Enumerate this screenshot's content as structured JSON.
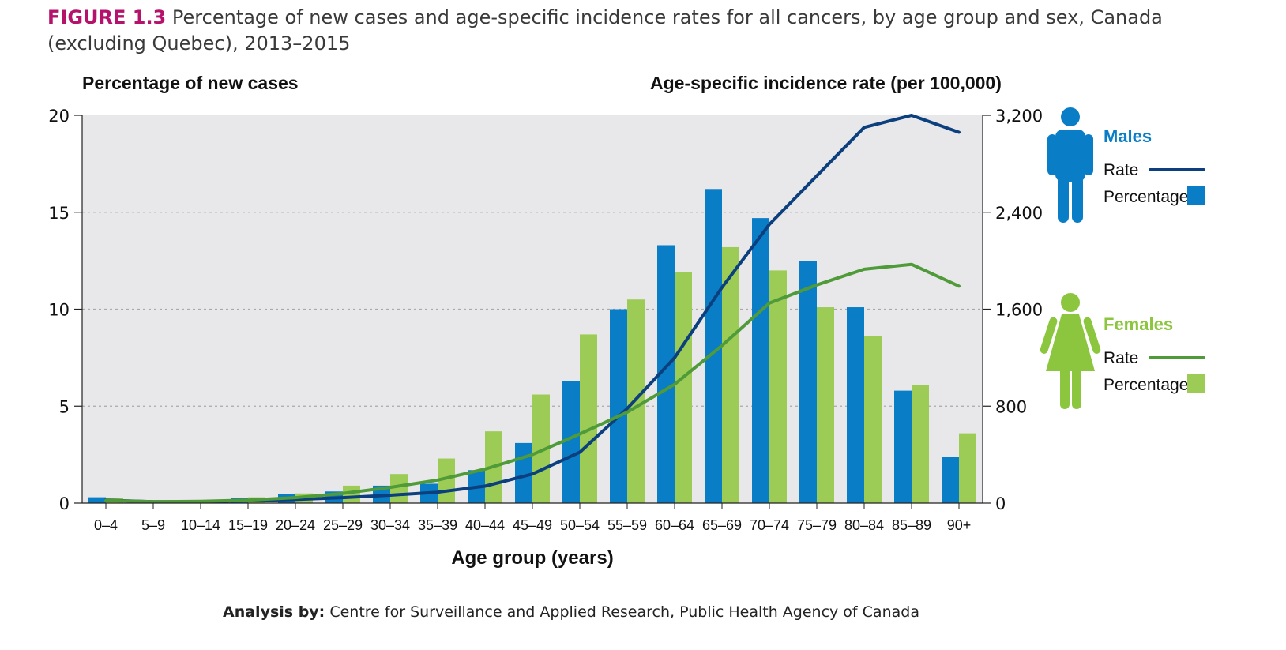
{
  "figure": {
    "number": "FIGURE 1.3",
    "title": "Percentage of new cases and age-specific incidence rates for all cancers, by age group and sex, Canada (excluding Quebec), 2013–2015"
  },
  "source": {
    "label": "Analysis by:",
    "text": "Centre for Surveillance and Applied Research, Public Health Agency of Canada"
  },
  "chart_data": {
    "type": "bar",
    "title": "",
    "xlabel": "Age group (years)",
    "ylabel": "Percentage of new cases",
    "y2label": "Age-specific incidence rate (per 100,000)",
    "ylim": [
      0,
      20
    ],
    "y2lim": [
      0,
      3200
    ],
    "yticks": [
      "0",
      "5",
      "10",
      "15",
      "20"
    ],
    "y2ticks": [
      "0",
      "800",
      "1,600",
      "2,400",
      "3,200"
    ],
    "grid": true,
    "legend_placement": "right",
    "categories": [
      "0–4",
      "5–9",
      "10–14",
      "15–19",
      "20–24",
      "25–29",
      "30–34",
      "35–39",
      "40–44",
      "45–49",
      "50–54",
      "55–59",
      "60–64",
      "65–69",
      "70–74",
      "75–79",
      "80–84",
      "85–89",
      "90+"
    ],
    "series": [
      {
        "name": "Percentage",
        "group": "Males",
        "kind": "bar",
        "axis": "left",
        "color": "#0a7dc7",
        "values": [
          0.3,
          0.1,
          0.15,
          0.25,
          0.45,
          0.6,
          0.9,
          1.0,
          1.7,
          3.1,
          6.3,
          10.0,
          13.3,
          16.2,
          14.7,
          12.5,
          10.1,
          5.8,
          2.4
        ]
      },
      {
        "name": "Percentage",
        "group": "Females",
        "kind": "bar",
        "axis": "left",
        "color": "#9ccc55",
        "values": [
          0.25,
          0.1,
          0.15,
          0.3,
          0.5,
          0.9,
          1.5,
          2.3,
          3.7,
          5.6,
          8.7,
          10.5,
          11.9,
          13.2,
          12.0,
          10.1,
          8.6,
          6.1,
          3.6
        ]
      },
      {
        "name": "Rate",
        "group": "Males",
        "kind": "line",
        "axis": "right",
        "color": "#0c3f7e",
        "values": [
          25,
          12,
          12,
          20,
          30,
          45,
          65,
          90,
          140,
          240,
          420,
          780,
          1200,
          1780,
          2300,
          2700,
          3100,
          3200,
          3060
        ]
      },
      {
        "name": "Rate",
        "group": "Females",
        "kind": "line",
        "axis": "right",
        "color": "#4f9a39",
        "values": [
          22,
          12,
          15,
          25,
          45,
          80,
          130,
          190,
          280,
          400,
          570,
          750,
          980,
          1300,
          1650,
          1800,
          1930,
          1970,
          1790
        ]
      }
    ]
  },
  "legend": {
    "males": {
      "title": "Males",
      "rate_label": "Rate",
      "percentage_label": "Percentage",
      "icon": "male-person-icon",
      "color": "#0a7dc7",
      "line_color": "#0c3f7e"
    },
    "females": {
      "title": "Females",
      "rate_label": "Rate",
      "percentage_label": "Percentage",
      "icon": "female-person-icon",
      "color": "#9ccc55",
      "line_color": "#4f9a39",
      "title_color": "#8cc63f"
    }
  }
}
